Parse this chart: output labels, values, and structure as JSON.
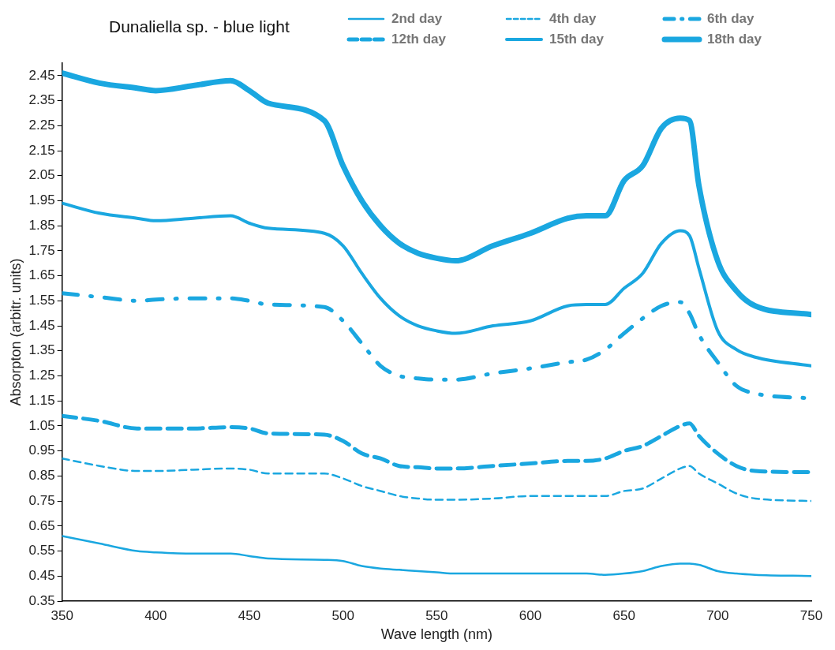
{
  "chart_data": {
    "type": "line",
    "title": "Dunaliella sp. - blue light",
    "xlabel": "Wave length (nm)",
    "ylabel": "Absorpton (arbitr. units)",
    "x": [
      350,
      370,
      390,
      400,
      420,
      440,
      450,
      460,
      490,
      500,
      510,
      520,
      530,
      540,
      550,
      560,
      580,
      600,
      620,
      630,
      640,
      650,
      660,
      670,
      680,
      685,
      690,
      700,
      710,
      720,
      750
    ],
    "series": [
      {
        "name": "2nd day",
        "color": "#1aa7e0",
        "line_style": "solid",
        "values": [
          0.61,
          0.58,
          0.55,
          0.545,
          0.54,
          0.54,
          0.53,
          0.52,
          0.515,
          0.51,
          0.49,
          0.48,
          0.475,
          0.47,
          0.465,
          0.46,
          0.46,
          0.46,
          0.46,
          0.46,
          0.455,
          0.46,
          0.47,
          0.49,
          0.5,
          0.5,
          0.495,
          0.47,
          0.46,
          0.455,
          0.45
        ]
      },
      {
        "name": "4th day",
        "color": "#1aa7e0",
        "line_style": "dashed",
        "values": [
          0.92,
          0.89,
          0.87,
          0.87,
          0.875,
          0.88,
          0.875,
          0.86,
          0.86,
          0.84,
          0.81,
          0.79,
          0.77,
          0.76,
          0.755,
          0.755,
          0.76,
          0.77,
          0.77,
          0.77,
          0.77,
          0.79,
          0.8,
          0.84,
          0.88,
          0.89,
          0.86,
          0.82,
          0.78,
          0.76,
          0.75
        ]
      },
      {
        "name": "6th day",
        "color": "#1aa7e0",
        "line_style": "dashed",
        "values": [
          1.58,
          1.565,
          1.55,
          1.555,
          1.56,
          1.56,
          1.55,
          1.535,
          1.525,
          1.47,
          1.38,
          1.29,
          1.25,
          1.24,
          1.235,
          1.235,
          1.26,
          1.28,
          1.305,
          1.315,
          1.355,
          1.42,
          1.48,
          1.53,
          1.545,
          1.5,
          1.415,
          1.305,
          1.21,
          1.18,
          1.16
        ]
      },
      {
        "name": "12th day",
        "color": "#1aa7e0",
        "line_style": "dashed",
        "values": [
          1.09,
          1.07,
          1.04,
          1.04,
          1.04,
          1.045,
          1.04,
          1.02,
          1.015,
          0.99,
          0.94,
          0.92,
          0.89,
          0.885,
          0.88,
          0.88,
          0.89,
          0.9,
          0.91,
          0.91,
          0.92,
          0.95,
          0.97,
          1.01,
          1.05,
          1.06,
          1.01,
          0.94,
          0.89,
          0.87,
          0.865
        ]
      },
      {
        "name": "15th day",
        "color": "#1aa7e0",
        "line_style": "solid",
        "values": [
          1.94,
          1.9,
          1.88,
          1.87,
          1.88,
          1.89,
          1.86,
          1.84,
          1.82,
          1.77,
          1.66,
          1.56,
          1.49,
          1.45,
          1.43,
          1.42,
          1.45,
          1.47,
          1.53,
          1.535,
          1.535,
          1.6,
          1.66,
          1.78,
          1.83,
          1.81,
          1.68,
          1.43,
          1.355,
          1.325,
          1.29
        ]
      },
      {
        "name": "18th day",
        "color": "#1aa7e0",
        "line_style": "solid",
        "values": [
          2.46,
          2.42,
          2.4,
          2.39,
          2.41,
          2.43,
          2.39,
          2.34,
          2.27,
          2.09,
          1.95,
          1.85,
          1.78,
          1.74,
          1.72,
          1.71,
          1.77,
          1.82,
          1.88,
          1.89,
          1.89,
          2.03,
          2.09,
          2.24,
          2.28,
          2.27,
          2.01,
          1.71,
          1.59,
          1.53,
          1.495
        ]
      }
    ],
    "xlim": [
      350,
      750
    ],
    "xticks": [
      350,
      400,
      450,
      500,
      550,
      600,
      650,
      700,
      750
    ],
    "ylim": [
      0.35,
      2.5
    ],
    "yticks": [
      0.35,
      0.45,
      0.55,
      0.65,
      0.75,
      0.85,
      0.95,
      1.05,
      1.15,
      1.25,
      1.35,
      1.45,
      1.55,
      1.65,
      1.75,
      1.85,
      1.95,
      2.05,
      2.15,
      2.25,
      2.35,
      2.45
    ],
    "grid": false,
    "legend": "top right",
    "marker": "none"
  }
}
